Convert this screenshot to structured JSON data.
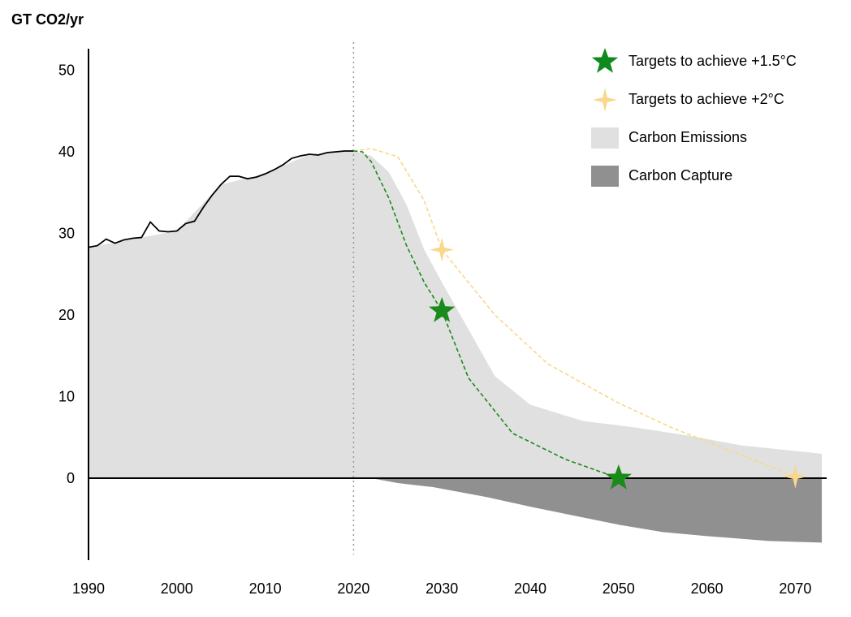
{
  "chart_data": {
    "type": "area",
    "ylabel": "GT CO2/yr",
    "xlabel": "",
    "xlim": [
      1990,
      2073
    ],
    "ylim": [
      -10,
      52
    ],
    "yticks": [
      0,
      10,
      20,
      30,
      40,
      50
    ],
    "xticks": [
      1990,
      2000,
      2010,
      2020,
      2030,
      2040,
      2050,
      2060,
      2070
    ],
    "reference_line_x": 2020,
    "historical_emissions": {
      "x": [
        1990,
        1991,
        1992,
        1993,
        1994,
        1995,
        1996,
        1997,
        1998,
        1999,
        2000,
        2001,
        2002,
        2003,
        2004,
        2005,
        2006,
        2007,
        2008,
        2009,
        2010,
        2011,
        2012,
        2013,
        2014,
        2015,
        2016,
        2017,
        2018,
        2019,
        2020
      ],
      "y": [
        28.3,
        28.5,
        29.3,
        28.8,
        29.2,
        29.4,
        29.5,
        31.4,
        30.3,
        30.2,
        30.3,
        31.2,
        31.5,
        33.2,
        34.7,
        36.0,
        37.0,
        37.0,
        36.7,
        36.9,
        37.3,
        37.8,
        38.4,
        39.2,
        39.5,
        39.7,
        39.6,
        39.9,
        40.0,
        40.1,
        40.1
      ]
    },
    "series": [
      {
        "name": "Carbon Emissions",
        "x": [
          1990,
          2000,
          2005,
          2010,
          2015,
          2020,
          2022,
          2024,
          2026,
          2028,
          2030,
          2036,
          2040,
          2046,
          2052,
          2058,
          2064,
          2073
        ],
        "y": [
          28.3,
          30.3,
          36.0,
          37.3,
          39.7,
          40.1,
          39.5,
          37.5,
          33.5,
          28.0,
          24.0,
          12.5,
          9.0,
          7.0,
          6.2,
          5.2,
          4.0,
          3.0
        ]
      },
      {
        "name": "Carbon Capture",
        "x": [
          2022,
          2025,
          2029,
          2035,
          2040,
          2045,
          2050,
          2055,
          2060,
          2067,
          2073
        ],
        "y": [
          0,
          -0.6,
          -1.1,
          -2.3,
          -3.5,
          -4.6,
          -5.7,
          -6.6,
          -7.1,
          -7.7,
          -7.9
        ]
      },
      {
        "name": "Targets to achieve +1.5°C",
        "x": [
          2020,
          2021,
          2022,
          2024,
          2026,
          2028,
          2030,
          2033,
          2038,
          2044,
          2050
        ],
        "y": [
          40.1,
          40.0,
          38.8,
          34.3,
          28.5,
          24.0,
          20.5,
          12.3,
          5.5,
          2.3,
          0
        ],
        "markers_at_x": [
          2030,
          2050
        ]
      },
      {
        "name": "Targets to achieve +2°C",
        "x": [
          2020,
          2022,
          2025,
          2028,
          2030,
          2036,
          2042,
          2050,
          2056,
          2063,
          2070
        ],
        "y": [
          40.1,
          40.4,
          39.4,
          34.0,
          28.0,
          20.0,
          14.0,
          9.2,
          6.2,
          3.2,
          0.2
        ],
        "markers_at_x": [
          2030,
          2070
        ]
      }
    ],
    "colors": {
      "emissions_fill": "#e0e0e0",
      "capture_fill": "#909090",
      "target_15": "#1a8a1a",
      "target_2": "#f8d88a",
      "historical_line": "#000000",
      "reference_line": "#999999"
    },
    "legend_position": "top-right"
  },
  "legend": {
    "items": [
      {
        "label": "Targets to achieve +1.5°C",
        "icon": "star-icon",
        "color": "#0f8a1e"
      },
      {
        "label": "Targets to achieve +2°C",
        "icon": "sparkle-star-icon",
        "color": "#f8d88a"
      },
      {
        "label": "Carbon Emissions",
        "icon": "square-swatch",
        "color": "#e0e0e0"
      },
      {
        "label": "Carbon Capture",
        "icon": "square-swatch",
        "color": "#909090"
      }
    ]
  }
}
